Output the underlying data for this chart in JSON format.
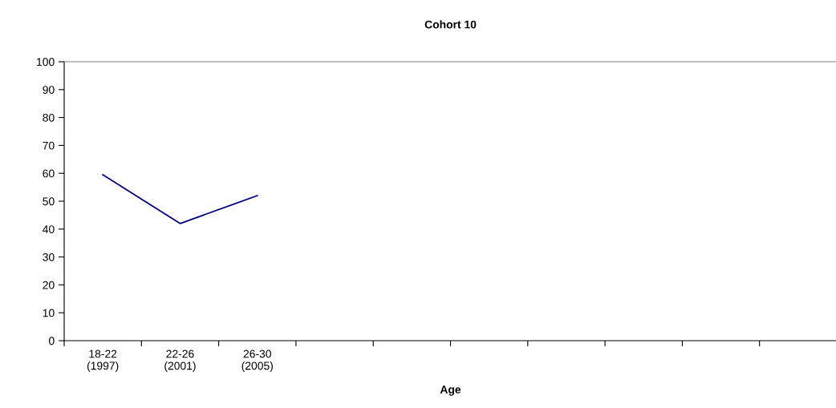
{
  "chart_data": {
    "type": "line",
    "title": "Cohort 10",
    "xlabel": "Age",
    "categories": [
      "18-22\n(1997)",
      "22-26\n(2001)",
      "26-30\n(2005)",
      null,
      null,
      null,
      null,
      null,
      null,
      null
    ],
    "series": [
      {
        "color": "#000080",
        "values": [
          59.5,
          42,
          52,
          null,
          null,
          null,
          null,
          null,
          null,
          null
        ]
      }
    ],
    "ylim": [
      0,
      100
    ],
    "yticks": [
      0,
      10,
      20,
      30,
      40,
      50,
      60,
      70,
      80,
      90,
      100
    ],
    "grid": false,
    "legend": false,
    "marker": "none",
    "line_style": "solid"
  }
}
